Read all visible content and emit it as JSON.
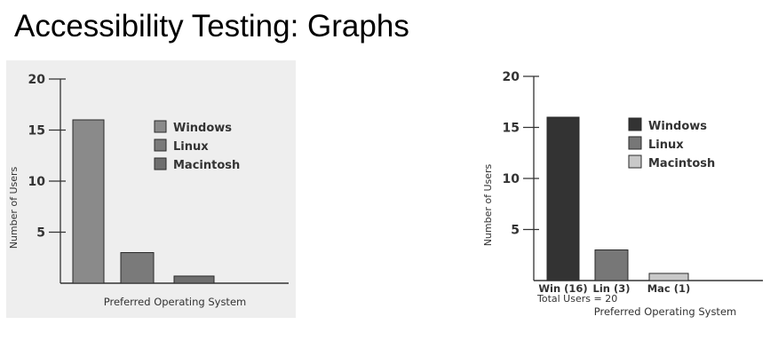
{
  "slide": {
    "title": "Accessibility Testing: Graphs"
  },
  "chart_data": [
    {
      "type": "bar",
      "title": "",
      "ylabel": "Number of Users",
      "xlabel": "Preferred Operating System",
      "categories": [
        "Windows",
        "Linux",
        "Macintosh"
      ],
      "values": [
        16,
        3,
        0.7
      ],
      "ylim": [
        0,
        20
      ],
      "yticks": [
        5,
        10,
        15,
        20
      ],
      "legend": {
        "position": "right",
        "entries": [
          "Windows",
          "Linux",
          "Macintosh"
        ]
      },
      "colors": [
        "#8a8a8a",
        "#7a7a7a",
        "#6e6e6e"
      ],
      "category_labels": [],
      "note": "",
      "background": "#eeeeee"
    },
    {
      "type": "bar",
      "title": "",
      "ylabel": "Number of Users",
      "xlabel": "Preferred Operating System",
      "categories": [
        "Windows",
        "Linux",
        "Macintosh"
      ],
      "values": [
        16,
        3,
        0.7
      ],
      "ylim": [
        0,
        20
      ],
      "yticks": [
        5,
        10,
        15,
        20
      ],
      "legend": {
        "position": "right",
        "entries": [
          "Windows",
          "Linux",
          "Macintosh"
        ]
      },
      "colors": [
        "#333333",
        "#777777",
        "#c8c8c8"
      ],
      "category_labels": [
        "Win (16)",
        "Lin (3)",
        "Mac (1)"
      ],
      "note": "Total Users = 20",
      "background": "#ffffff"
    }
  ]
}
